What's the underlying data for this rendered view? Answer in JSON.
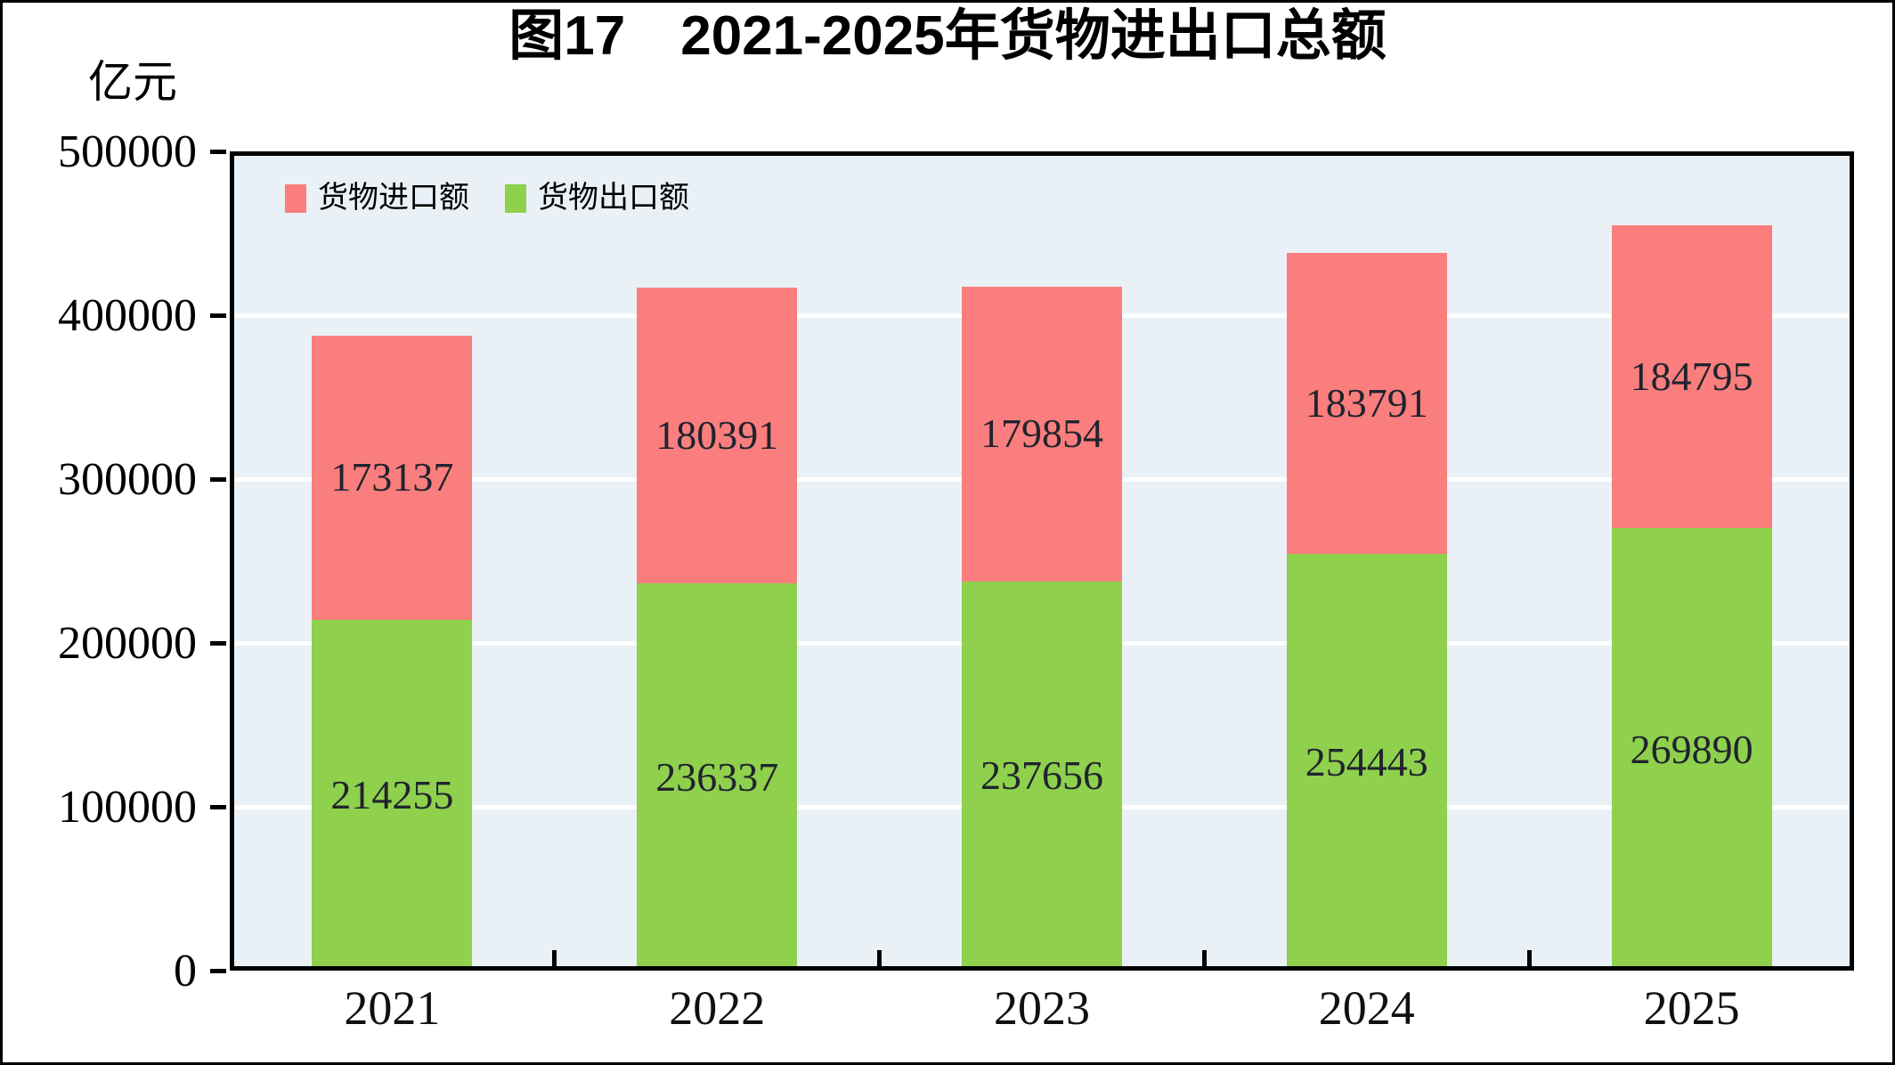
{
  "figure": {
    "title": "图17　2021-2025年货物进出口总额",
    "unit_label": "亿元"
  },
  "legend": {
    "items": [
      {
        "label": "货物进口额",
        "color": "#fa7e7d"
      },
      {
        "label": "货物出口额",
        "color": "#8fd04d"
      }
    ]
  },
  "chart_data": {
    "type": "bar",
    "stacked": true,
    "title": "图17　2021-2025年货物进出口总额",
    "xlabel": "",
    "ylabel": "亿元",
    "categories": [
      "2021",
      "2022",
      "2023",
      "2024",
      "2025"
    ],
    "series": [
      {
        "name": "货物出口额",
        "key": "export",
        "color": "#8fd04d",
        "values": [
          214255,
          236337,
          237656,
          254443,
          269890
        ]
      },
      {
        "name": "货物进口额",
        "key": "import",
        "color": "#fa7e7d",
        "values": [
          173137,
          180391,
          179854,
          183791,
          184795
        ]
      }
    ],
    "totals": [
      387392,
      416728,
      417510,
      438234,
      454685
    ],
    "ylim": [
      0,
      500000
    ],
    "yticks": [
      0,
      100000,
      200000,
      300000,
      400000,
      500000
    ],
    "grid": true,
    "gridline_color": "#ffffff",
    "plot_background": "#eaf1f6",
    "frame_color": "#000000",
    "value_label_color": "#20242e",
    "legend_position": "top-left-inside"
  }
}
